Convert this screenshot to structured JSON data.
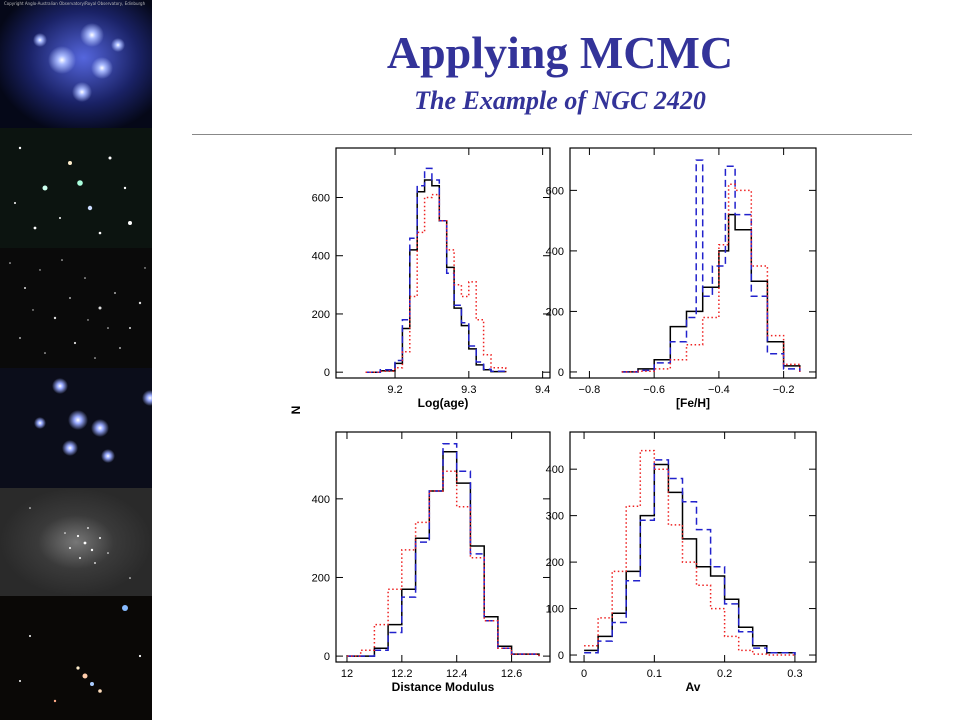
{
  "slide": {
    "title": "Applying MCMC",
    "subtitle": "The Example of NGC 2420",
    "image_credit": "Copyright Anglo-Australian Observatory/Royal Observatory, Edinburgh"
  },
  "colors": {
    "title": "#333399",
    "series_black": "#000000",
    "series_blue": "#2222cc",
    "series_red": "#ee2222"
  },
  "icons": [
    "pleiades-cluster-image",
    "open-cluster-image",
    "dense-starfield-image",
    "bright-cluster-image",
    "globular-cluster-image",
    "reddish-cluster-image"
  ],
  "shared_ylabel": "N",
  "chart_data": [
    {
      "type": "line",
      "xlabel": "Log(age)",
      "ylabel": "N",
      "xlim": [
        9.12,
        9.41
      ],
      "ylim": [
        -20,
        770
      ],
      "xticks": [
        9.2,
        9.3,
        9.4
      ],
      "xtick_labels": [
        "9.2",
        "9.3",
        "9.4"
      ],
      "yticks": [
        0,
        200,
        400,
        600
      ],
      "ytick_labels": [
        "0",
        "200",
        "400",
        "600"
      ],
      "series": [
        {
          "style": "solid",
          "color": "#000000",
          "x": [
            9.16,
            9.18,
            9.2,
            9.21,
            9.22,
            9.23,
            9.24,
            9.25,
            9.26,
            9.27,
            9.28,
            9.29,
            9.3,
            9.31,
            9.32,
            9.33,
            9.35
          ],
          "values": [
            0,
            5,
            30,
            150,
            420,
            620,
            660,
            640,
            520,
            360,
            220,
            160,
            80,
            25,
            8,
            2,
            0
          ]
        },
        {
          "style": "dashed",
          "color": "#2222cc",
          "x": [
            9.16,
            9.18,
            9.2,
            9.21,
            9.22,
            9.23,
            9.24,
            9.25,
            9.26,
            9.27,
            9.28,
            9.29,
            9.3,
            9.31,
            9.32,
            9.33,
            9.35
          ],
          "values": [
            0,
            8,
            40,
            180,
            460,
            640,
            700,
            660,
            520,
            340,
            230,
            170,
            90,
            35,
            10,
            3,
            0
          ]
        },
        {
          "style": "dotted",
          "color": "#ee2222",
          "x": [
            9.16,
            9.18,
            9.2,
            9.21,
            9.22,
            9.23,
            9.24,
            9.25,
            9.26,
            9.27,
            9.28,
            9.29,
            9.3,
            9.31,
            9.32,
            9.33,
            9.35
          ],
          "values": [
            0,
            3,
            15,
            70,
            260,
            480,
            600,
            610,
            520,
            420,
            300,
            260,
            310,
            180,
            60,
            15,
            0
          ]
        }
      ]
    },
    {
      "type": "line",
      "xlabel": "[Fe/H]",
      "ylabel": "N",
      "xlim": [
        -0.86,
        -0.1
      ],
      "ylim": [
        -20,
        740
      ],
      "xticks": [
        -0.8,
        -0.6,
        -0.4,
        -0.2
      ],
      "xtick_labels": [
        "−0.8",
        "−0.6",
        "−0.4",
        "−0.2"
      ],
      "yticks": [
        0,
        200,
        400,
        600
      ],
      "ytick_labels": [
        "0",
        "200",
        "400",
        "600"
      ],
      "series": [
        {
          "style": "solid",
          "color": "#000000",
          "x": [
            -0.7,
            -0.65,
            -0.6,
            -0.55,
            -0.5,
            -0.45,
            -0.4,
            -0.37,
            -0.35,
            -0.3,
            -0.25,
            -0.2,
            -0.15
          ],
          "values": [
            0,
            10,
            40,
            150,
            200,
            280,
            400,
            520,
            470,
            300,
            100,
            20,
            0
          ]
        },
        {
          "style": "dashed",
          "color": "#2222cc",
          "x": [
            -0.7,
            -0.65,
            -0.6,
            -0.55,
            -0.5,
            -0.47,
            -0.45,
            -0.42,
            -0.38,
            -0.35,
            -0.3,
            -0.25,
            -0.2,
            -0.15
          ],
          "values": [
            0,
            5,
            30,
            100,
            180,
            700,
            250,
            350,
            680,
            520,
            250,
            60,
            10,
            0
          ]
        },
        {
          "style": "dotted",
          "color": "#ee2222",
          "x": [
            -0.7,
            -0.65,
            -0.6,
            -0.55,
            -0.5,
            -0.45,
            -0.4,
            -0.37,
            -0.35,
            -0.3,
            -0.25,
            -0.2,
            -0.15
          ],
          "values": [
            0,
            2,
            10,
            40,
            90,
            180,
            420,
            620,
            600,
            350,
            120,
            25,
            0
          ]
        }
      ]
    },
    {
      "type": "line",
      "xlabel": "Distance Modulus",
      "ylabel": "N",
      "xlim": [
        11.96,
        12.74
      ],
      "ylim": [
        -15,
        570
      ],
      "xticks": [
        12,
        12.2,
        12.4,
        12.6
      ],
      "xtick_labels": [
        "12",
        "12.2",
        "12.4",
        "12.6"
      ],
      "yticks": [
        0,
        200,
        400
      ],
      "ytick_labels": [
        "0",
        "200",
        "400"
      ],
      "series": [
        {
          "style": "solid",
          "color": "#000000",
          "x": [
            12.0,
            12.1,
            12.15,
            12.2,
            12.25,
            12.3,
            12.35,
            12.4,
            12.45,
            12.5,
            12.55,
            12.6,
            12.7
          ],
          "values": [
            0,
            20,
            80,
            170,
            300,
            420,
            520,
            440,
            280,
            100,
            25,
            5,
            0
          ]
        },
        {
          "style": "dashed",
          "color": "#2222cc",
          "x": [
            12.0,
            12.1,
            12.15,
            12.2,
            12.25,
            12.3,
            12.35,
            12.4,
            12.45,
            12.5,
            12.55,
            12.6,
            12.7
          ],
          "values": [
            0,
            15,
            60,
            150,
            290,
            420,
            540,
            470,
            260,
            90,
            20,
            5,
            0
          ]
        },
        {
          "style": "dotted",
          "color": "#ee2222",
          "x": [
            12.0,
            12.05,
            12.1,
            12.15,
            12.2,
            12.25,
            12.3,
            12.35,
            12.4,
            12.45,
            12.5,
            12.55,
            12.6,
            12.7
          ],
          "values": [
            0,
            15,
            80,
            170,
            270,
            340,
            420,
            470,
            380,
            250,
            90,
            20,
            5,
            0
          ]
        }
      ]
    },
    {
      "type": "line",
      "xlabel": "Av",
      "ylabel": "N",
      "xlim": [
        -0.02,
        0.33
      ],
      "ylim": [
        -15,
        480
      ],
      "xticks": [
        0,
        0.1,
        0.2,
        0.3
      ],
      "xtick_labels": [
        "0",
        "0.1",
        "0.2",
        "0.3"
      ],
      "yticks": [
        0,
        100,
        200,
        300,
        400
      ],
      "ytick_labels": [
        "0",
        "100",
        "200",
        "300",
        "400"
      ],
      "series": [
        {
          "style": "solid",
          "color": "#000000",
          "x": [
            0.0,
            0.02,
            0.04,
            0.06,
            0.08,
            0.1,
            0.12,
            0.14,
            0.16,
            0.18,
            0.2,
            0.22,
            0.24,
            0.26,
            0.3
          ],
          "values": [
            10,
            40,
            90,
            180,
            300,
            410,
            350,
            250,
            190,
            170,
            120,
            60,
            20,
            5,
            0
          ]
        },
        {
          "style": "dashed",
          "color": "#2222cc",
          "x": [
            0.0,
            0.02,
            0.04,
            0.06,
            0.08,
            0.1,
            0.12,
            0.14,
            0.16,
            0.18,
            0.2,
            0.22,
            0.24,
            0.26,
            0.3
          ],
          "values": [
            5,
            30,
            70,
            160,
            290,
            420,
            380,
            330,
            270,
            190,
            110,
            50,
            15,
            5,
            0
          ]
        },
        {
          "style": "dotted",
          "color": "#ee2222",
          "x": [
            0.0,
            0.02,
            0.04,
            0.06,
            0.08,
            0.1,
            0.12,
            0.14,
            0.16,
            0.18,
            0.2,
            0.22,
            0.24,
            0.26,
            0.3
          ],
          "values": [
            20,
            80,
            180,
            320,
            440,
            400,
            280,
            200,
            150,
            100,
            40,
            10,
            2,
            0,
            0
          ]
        }
      ]
    }
  ]
}
